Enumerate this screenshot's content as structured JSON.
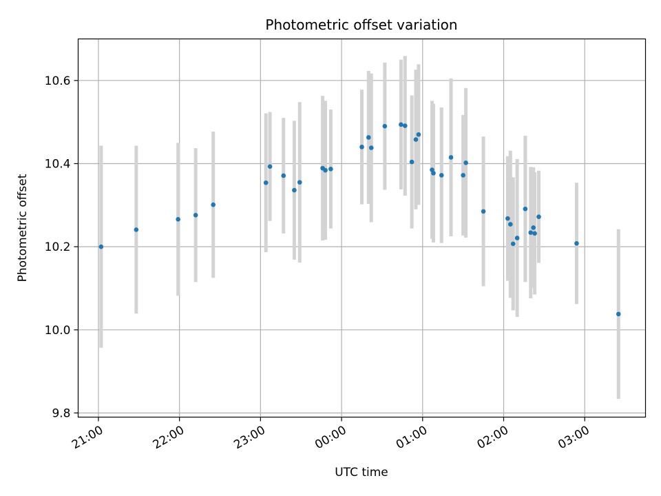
{
  "chart_data": {
    "type": "scatter",
    "title": "Photometric offset variation",
    "xlabel": "UTC time",
    "ylabel": "Photometric offset",
    "x_is_time": true,
    "xlim": [
      "20:45",
      "03:45"
    ],
    "ylim": [
      9.79,
      10.7
    ],
    "grid": true,
    "x_ticks": [
      "21:00",
      "22:00",
      "23:00",
      "00:00",
      "01:00",
      "02:00",
      "03:00"
    ],
    "y_ticks": [
      "9.8",
      "10.0",
      "10.2",
      "10.4",
      "10.6"
    ],
    "colors": {
      "points": "#1f77b4",
      "errorbars": "#d3d3d3",
      "grid": "#b0b0b0"
    },
    "points": [
      {
        "x": "21:02",
        "y": 10.2,
        "err": 0.243
      },
      {
        "x": "21:28",
        "y": 10.241,
        "err": 0.202
      },
      {
        "x": "21:59",
        "y": 10.266,
        "err": 0.184
      },
      {
        "x": "22:12",
        "y": 10.276,
        "err": 0.161
      },
      {
        "x": "22:25",
        "y": 10.301,
        "err": 0.176
      },
      {
        "x": "23:04",
        "y": 10.354,
        "err": 0.167
      },
      {
        "x": "23:07",
        "y": 10.393,
        "err": 0.131
      },
      {
        "x": "23:17",
        "y": 10.371,
        "err": 0.139
      },
      {
        "x": "23:25",
        "y": 10.336,
        "err": 0.167
      },
      {
        "x": "23:29",
        "y": 10.355,
        "err": 0.193
      },
      {
        "x": "23:46",
        "y": 10.389,
        "err": 0.174
      },
      {
        "x": "23:48",
        "y": 10.384,
        "err": 0.167
      },
      {
        "x": "23:52",
        "y": 10.387,
        "err": 0.143
      },
      {
        "x": "00:15",
        "y": 10.44,
        "err": 0.138
      },
      {
        "x": "00:20",
        "y": 10.463,
        "err": 0.16
      },
      {
        "x": "00:22",
        "y": 10.438,
        "err": 0.179
      },
      {
        "x": "00:32",
        "y": 10.49,
        "err": 0.153
      },
      {
        "x": "00:44",
        "y": 10.494,
        "err": 0.156
      },
      {
        "x": "00:47",
        "y": 10.491,
        "err": 0.168
      },
      {
        "x": "00:52",
        "y": 10.404,
        "err": 0.16
      },
      {
        "x": "00:55",
        "y": 10.458,
        "err": 0.168
      },
      {
        "x": "00:57",
        "y": 10.47,
        "err": 0.169
      },
      {
        "x": "01:07",
        "y": 10.385,
        "err": 0.166
      },
      {
        "x": "01:08",
        "y": 10.377,
        "err": 0.167
      },
      {
        "x": "01:14",
        "y": 10.372,
        "err": 0.163
      },
      {
        "x": "01:21",
        "y": 10.415,
        "err": 0.19
      },
      {
        "x": "01:30",
        "y": 10.372,
        "err": 0.145
      },
      {
        "x": "01:32",
        "y": 10.402,
        "err": 0.18
      },
      {
        "x": "01:45",
        "y": 10.285,
        "err": 0.18
      },
      {
        "x": "02:03",
        "y": 10.268,
        "err": 0.15
      },
      {
        "x": "02:05",
        "y": 10.254,
        "err": 0.177
      },
      {
        "x": "02:07",
        "y": 10.207,
        "err": 0.16
      },
      {
        "x": "02:10",
        "y": 10.221,
        "err": 0.19
      },
      {
        "x": "02:16",
        "y": 10.291,
        "err": 0.176
      },
      {
        "x": "02:20",
        "y": 10.234,
        "err": 0.158
      },
      {
        "x": "02:22",
        "y": 10.246,
        "err": 0.145
      },
      {
        "x": "02:23",
        "y": 10.232,
        "err": 0.147
      },
      {
        "x": "02:26",
        "y": 10.272,
        "err": 0.111
      },
      {
        "x": "02:54",
        "y": 10.208,
        "err": 0.146
      },
      {
        "x": "03:25",
        "y": 10.038,
        "err": 0.204
      }
    ]
  }
}
